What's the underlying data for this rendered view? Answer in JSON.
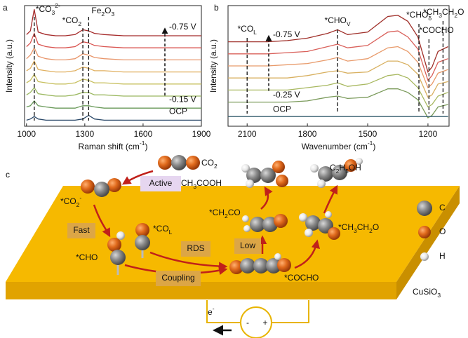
{
  "panels": [
    "a",
    "b",
    "c"
  ],
  "chart_data": [
    {
      "type": "line",
      "xlabel": [
        "Raman shift (cm",
        {
          "sup": "-1"
        },
        ")"
      ],
      "ylabel": "Intensity (a.u.)",
      "xlim": [
        990,
        1900
      ],
      "xticks": [
        1000,
        1300,
        1600,
        1900
      ],
      "ylim": [
        0,
        10
      ],
      "x": [
        1000,
        1020,
        1040,
        1060,
        1100,
        1150,
        1200,
        1250,
        1290,
        1320,
        1350,
        1400,
        1500,
        1600,
        1700,
        1800,
        1900
      ],
      "series": [
        {
          "name": "-0.75 V",
          "color": "#a52a2a",
          "values": [
            7.6,
            7.9,
            9.7,
            7.8,
            7.6,
            7.5,
            7.5,
            7.6,
            8.0,
            7.9,
            7.7,
            7.6,
            7.5,
            7.5,
            7.5,
            7.5,
            7.5
          ]
        },
        {
          "color": "#d9534f",
          "values": [
            6.6,
            6.9,
            7.7,
            6.8,
            6.6,
            6.5,
            6.5,
            6.6,
            7.0,
            6.9,
            6.7,
            6.6,
            6.5,
            6.5,
            6.5,
            6.5,
            6.5
          ]
        },
        {
          "color": "#e8956a",
          "values": [
            5.6,
            5.9,
            6.5,
            5.8,
            5.6,
            5.5,
            5.5,
            5.6,
            6.0,
            5.9,
            5.7,
            5.6,
            5.5,
            5.5,
            5.5,
            5.5,
            5.5
          ]
        },
        {
          "color": "#e0b060",
          "values": [
            4.6,
            4.8,
            5.4,
            4.7,
            4.6,
            4.5,
            4.5,
            4.6,
            4.9,
            4.8,
            4.6,
            4.6,
            4.5,
            4.5,
            4.5,
            4.5,
            4.5
          ]
        },
        {
          "color": "#c8c060",
          "values": [
            3.6,
            3.8,
            4.3,
            3.7,
            3.6,
            3.5,
            3.5,
            3.6,
            3.9,
            3.8,
            3.6,
            3.6,
            3.5,
            3.5,
            3.5,
            3.5,
            3.5
          ]
        },
        {
          "color": "#9bb860",
          "values": [
            2.6,
            2.8,
            3.2,
            2.7,
            2.6,
            2.5,
            2.5,
            2.6,
            2.8,
            2.8,
            2.6,
            2.6,
            2.5,
            2.5,
            2.5,
            2.5,
            2.5
          ]
        },
        {
          "name": "-0.15 V",
          "color": "#6a9a5a",
          "values": [
            1.6,
            1.7,
            2.1,
            1.7,
            1.6,
            1.5,
            1.5,
            1.5,
            1.7,
            1.7,
            1.6,
            1.5,
            1.5,
            1.5,
            1.5,
            1.5,
            1.5
          ]
        },
        {
          "name": "OCP",
          "color": "#2c4a6a",
          "values": [
            0.5,
            0.6,
            0.8,
            0.6,
            0.5,
            0.5,
            0.5,
            0.5,
            0.6,
            0.9,
            0.6,
            0.5,
            0.5,
            0.5,
            0.5,
            0.5,
            0.5
          ]
        }
      ],
      "annotations": [
        {
          "label": [
            "*CO",
            {
              "sub": "3"
            },
            {
              "sup": "2-"
            }
          ],
          "x": 1040
        },
        {
          "label": [
            "*CO",
            {
              "sub": "2"
            }
          ],
          "x": 1290
        },
        {
          "label": [
            "Fe",
            {
              "sub": "2"
            },
            "O",
            {
              "sub": "3"
            }
          ],
          "x": 1320
        }
      ]
    },
    {
      "type": "line",
      "xlabel": [
        "Wavenumber (cm",
        {
          "sup": "-1"
        },
        ")"
      ],
      "ylabel": "Intensity (a.u.)",
      "xlim": [
        2195,
        1095
      ],
      "xticks": [
        2100,
        1800,
        1500,
        1200
      ],
      "ylim": [
        -0.5,
        9.5
      ],
      "x": [
        2195,
        2100,
        2000,
        1900,
        1800,
        1700,
        1650,
        1600,
        1500,
        1400,
        1350,
        1300,
        1250,
        1200,
        1180,
        1150,
        1100
      ],
      "series": [
        {
          "name": "-0.75 V",
          "color": "#a0302a",
          "values": [
            6.5,
            6.5,
            6.5,
            6.6,
            6.8,
            7.2,
            7.5,
            7.1,
            7.3,
            8.6,
            8.7,
            8.2,
            6.9,
            4.0,
            4.4,
            5.7,
            6.1
          ]
        },
        {
          "color": "#d9605a",
          "values": [
            5.5,
            5.5,
            5.5,
            5.6,
            5.7,
            6.1,
            6.3,
            6.0,
            6.2,
            7.3,
            7.4,
            6.9,
            5.9,
            3.3,
            3.7,
            4.8,
            5.1
          ]
        },
        {
          "color": "#e89a6a",
          "values": [
            4.5,
            4.5,
            4.5,
            4.6,
            4.7,
            5.0,
            5.2,
            4.9,
            5.1,
            6.0,
            6.1,
            5.7,
            4.8,
            2.7,
            3.0,
            3.9,
            4.2
          ]
        },
        {
          "color": "#d8b060",
          "values": [
            3.5,
            3.5,
            3.5,
            3.5,
            3.7,
            4.0,
            4.1,
            3.9,
            4.0,
            4.9,
            4.9,
            4.6,
            3.8,
            1.9,
            2.1,
            3.0,
            3.2
          ]
        },
        {
          "color": "#a8b860",
          "values": [
            2.5,
            2.5,
            2.5,
            2.5,
            2.7,
            2.9,
            3.1,
            2.8,
            3.0,
            3.7,
            3.8,
            3.5,
            2.7,
            1.1,
            1.3,
            2.0,
            2.3
          ]
        },
        {
          "name": "-0.25 V",
          "color": "#7a9a5a",
          "values": [
            1.5,
            1.5,
            1.5,
            1.5,
            1.6,
            1.9,
            2.0,
            1.8,
            1.9,
            2.6,
            2.6,
            2.3,
            1.7,
            0.2,
            0.4,
            1.1,
            1.3
          ]
        },
        {
          "name": "OCP",
          "color": "#3a6070",
          "values": [
            0.3,
            0.3,
            0.3,
            0.3,
            0.3,
            0.3,
            0.3,
            0.3,
            0.3,
            0.3,
            0.3,
            0.3,
            0.3,
            0.3,
            0.3,
            0.3,
            0.3
          ]
        }
      ],
      "annotations": [
        {
          "label": [
            "*CO",
            {
              "sub": "L"
            }
          ],
          "x": 2100
        },
        {
          "label": [
            "*CHO",
            {
              "sub": "V"
            }
          ],
          "x": 1650
        },
        {
          "label": [
            "*CHO",
            {
              "sub": "δ"
            }
          ],
          "x": 1245
        },
        {
          "label": [
            "*COCHO"
          ],
          "x": 1195
        },
        {
          "label": [
            "*CH",
            {
              "sub": "3"
            },
            "CH",
            {
              "sub": "2"
            },
            "O"
          ],
          "x": 1125
        }
      ]
    }
  ],
  "diagram": {
    "labels": [
      [
        "CO",
        {
          "sub": "2"
        }
      ],
      [
        "*CO",
        {
          "sub": "2"
        },
        {
          "sup": "-"
        }
      ],
      "*CHO",
      [
        "*CO",
        {
          "sub": "L"
        }
      ],
      [
        "*CH",
        {
          "sub": "2"
        },
        "CO"
      ],
      [
        "CH",
        {
          "sub": "3"
        },
        "COOH"
      ],
      [
        "C",
        {
          "sub": "2"
        },
        "H",
        {
          "sub": "5"
        },
        "OH"
      ],
      "*COCHO",
      [
        "*CH",
        {
          "sub": "3"
        },
        "CH",
        {
          "sub": "2"
        },
        "O"
      ]
    ],
    "step_boxes": [
      "Active",
      "Fast",
      "RDS",
      "Low",
      "Coupling"
    ],
    "legend": [
      "C",
      "O",
      "H"
    ],
    "catalyst": [
      "CuSiO",
      {
        "sub": "3"
      }
    ],
    "electron": [
      "e",
      {
        "sup": "-"
      }
    ],
    "terminals": [
      "-",
      "+"
    ]
  }
}
